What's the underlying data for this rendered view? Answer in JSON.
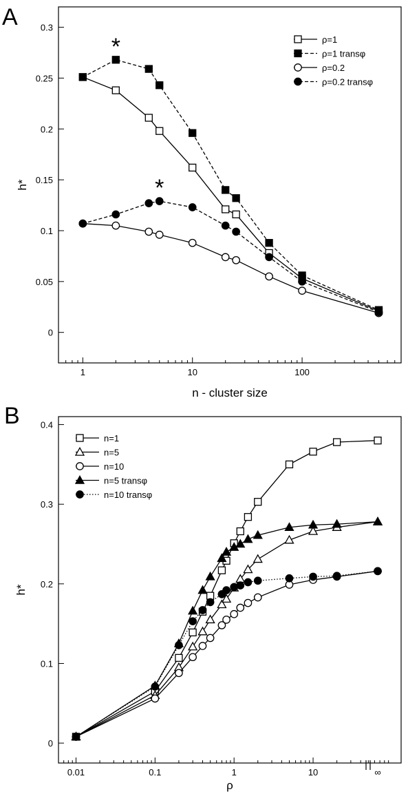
{
  "chart_data": [
    {
      "panel": "A",
      "type": "line",
      "x_scale": "log",
      "xlabel": "n - cluster size",
      "ylabel": "h*",
      "xlim": [
        0.6,
        800
      ],
      "ylim": [
        -0.03,
        0.32
      ],
      "xticks": [
        1,
        10,
        100
      ],
      "xtick_labels": [
        "1",
        "10",
        "100"
      ],
      "yticks": [
        0,
        0.05,
        0.1,
        0.15,
        0.2,
        0.25,
        0.3
      ],
      "ytick_labels": [
        "0",
        "0.05",
        "0.1",
        "0.15",
        "0.2",
        "0.25",
        "0.3"
      ],
      "legend_position": "top-right",
      "series": [
        {
          "name": "ρ=1",
          "marker": "square-open",
          "line": "solid",
          "x": [
            1,
            2,
            4,
            5,
            10,
            20,
            25,
            50,
            100,
            500
          ],
          "y": [
            0.251,
            0.238,
            0.211,
            0.198,
            0.162,
            0.121,
            0.116,
            0.078,
            0.053,
            0.021
          ]
        },
        {
          "name": "ρ=1 transφ",
          "marker": "square-filled",
          "line": "dashed",
          "x": [
            1,
            2,
            4,
            5,
            10,
            20,
            25,
            50,
            100,
            500
          ],
          "y": [
            0.251,
            0.268,
            0.259,
            0.243,
            0.196,
            0.14,
            0.132,
            0.088,
            0.056,
            0.022
          ]
        },
        {
          "name": "ρ=0.2",
          "marker": "circle-open",
          "line": "solid",
          "x": [
            1,
            2,
            4,
            5,
            10,
            20,
            25,
            50,
            100,
            500
          ],
          "y": [
            0.107,
            0.105,
            0.099,
            0.096,
            0.088,
            0.074,
            0.071,
            0.055,
            0.041,
            0.019
          ]
        },
        {
          "name": "ρ=0.2 transφ",
          "marker": "circle-filled",
          "line": "dashed",
          "x": [
            1,
            2,
            4,
            5,
            10,
            20,
            25,
            50,
            100,
            500
          ],
          "y": [
            0.107,
            0.116,
            0.127,
            0.129,
            0.123,
            0.105,
            0.099,
            0.074,
            0.05,
            0.02
          ]
        }
      ],
      "annotations": [
        {
          "text": "*",
          "x": 2,
          "y": 0.268
        },
        {
          "text": "*",
          "x": 5,
          "y": 0.129
        }
      ]
    },
    {
      "panel": "B",
      "type": "line",
      "x_scale": "log",
      "xlabel": "ρ",
      "ylabel": "h*",
      "xlim": [
        0.006,
        130
      ],
      "ylim": [
        -0.025,
        0.41
      ],
      "xticks": [
        0.01,
        0.1,
        1,
        10
      ],
      "xtick_labels": [
        "0.01",
        "0.1",
        "1",
        "10"
      ],
      "extra_xtick_label": "∞",
      "yticks": [
        0,
        0.1,
        0.2,
        0.3,
        0.4
      ],
      "ytick_labels": [
        "0",
        "0.1",
        "0.2",
        "0.3",
        "0.4"
      ],
      "legend_position": "top-left",
      "series": [
        {
          "name": "n=1",
          "marker": "square-open",
          "line": "solid",
          "x": [
            0.01,
            0.1,
            0.2,
            0.3,
            0.4,
            0.5,
            0.7,
            0.8,
            1,
            1.2,
            1.5,
            2,
            5,
            10,
            20,
            "∞"
          ],
          "y": [
            0.008,
            0.065,
            0.107,
            0.139,
            0.165,
            0.185,
            0.217,
            0.229,
            0.251,
            0.266,
            0.284,
            0.303,
            0.35,
            0.366,
            0.378,
            0.38
          ]
        },
        {
          "name": "n=5",
          "marker": "triangle-open",
          "line": "solid",
          "x": [
            0.01,
            0.1,
            0.2,
            0.3,
            0.4,
            0.5,
            0.7,
            0.8,
            1,
            1.2,
            1.5,
            2,
            5,
            10,
            20,
            "∞"
          ],
          "y": [
            0.008,
            0.06,
            0.095,
            0.121,
            0.14,
            0.155,
            0.174,
            0.181,
            0.195,
            0.206,
            0.218,
            0.231,
            0.255,
            0.266,
            0.271,
            0.278
          ]
        },
        {
          "name": "n=10",
          "marker": "circle-open",
          "line": "solid",
          "x": [
            0.01,
            0.1,
            0.2,
            0.3,
            0.4,
            0.5,
            0.7,
            0.8,
            1,
            1.2,
            1.5,
            2,
            5,
            10,
            20,
            "∞"
          ],
          "y": [
            0.008,
            0.056,
            0.088,
            0.108,
            0.122,
            0.132,
            0.148,
            0.155,
            0.162,
            0.17,
            0.176,
            0.183,
            0.199,
            0.205,
            0.209,
            0.216
          ]
        },
        {
          "name": "n=5 transφ",
          "marker": "triangle-filled",
          "line": "solid",
          "x": [
            0.01,
            0.1,
            0.2,
            0.3,
            0.4,
            0.5,
            0.7,
            0.8,
            1,
            1.2,
            1.5,
            2,
            5,
            10,
            20,
            "∞"
          ],
          "y": [
            0.008,
            0.072,
            0.125,
            0.166,
            0.192,
            0.209,
            0.232,
            0.24,
            0.246,
            0.25,
            0.256,
            0.261,
            0.271,
            0.274,
            0.275,
            0.278
          ]
        },
        {
          "name": "n=10 transφ",
          "marker": "circle-filled",
          "line": "dotted",
          "x": [
            0.01,
            0.1,
            0.2,
            0.3,
            0.4,
            0.5,
            0.7,
            0.8,
            1,
            1.2,
            1.5,
            2,
            5,
            10,
            20,
            "∞"
          ],
          "y": [
            0.008,
            0.071,
            0.123,
            0.153,
            0.167,
            0.177,
            0.187,
            0.192,
            0.196,
            0.198,
            0.202,
            0.204,
            0.207,
            0.209,
            0.21,
            0.216
          ]
        }
      ]
    }
  ],
  "panels": {
    "A": {
      "label": "A"
    },
    "B": {
      "label": "B"
    }
  }
}
